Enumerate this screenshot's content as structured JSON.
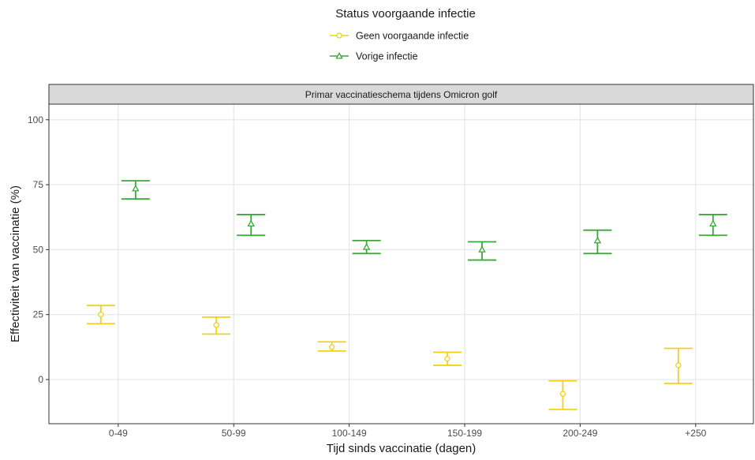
{
  "chart_data": {
    "type": "errorbar",
    "legend": {
      "title": "Status voorgaande infectie",
      "position": "top"
    },
    "facet_title": "Primar vaccinatieschema tijdens Omicron golf",
    "xlabel": "Tijd sinds vaccinatie (dagen)",
    "ylabel": "Effectiviteit van vaccinatie (%)",
    "categories": [
      "0-49",
      "50-99",
      "100-149",
      "150-199",
      "200-249",
      "+250"
    ],
    "ylim": [
      -17,
      106
    ],
    "yticks": [
      0,
      25,
      50,
      75,
      100
    ],
    "grid": true,
    "series": [
      {
        "name": "Geen voorgaande infectie",
        "color": "#f2d11d",
        "marker": "circle",
        "points": [
          {
            "category": "0-49",
            "value": 25,
            "lower": 21.5,
            "upper": 28.5
          },
          {
            "category": "50-99",
            "value": 21,
            "lower": 17.5,
            "upper": 24
          },
          {
            "category": "100-149",
            "value": 12.5,
            "lower": 11,
            "upper": 14.5
          },
          {
            "category": "150-199",
            "value": 8,
            "lower": 5.5,
            "upper": 10.5
          },
          {
            "category": "200-249",
            "value": -5.5,
            "lower": -11.5,
            "upper": -0.5
          },
          {
            "category": "+250",
            "value": 5.5,
            "lower": -1.5,
            "upper": 12
          }
        ]
      },
      {
        "name": "Vorige infectie",
        "color": "#3aa935",
        "marker": "triangle",
        "points": [
          {
            "category": "0-49",
            "value": 73.5,
            "lower": 69.5,
            "upper": 76.5
          },
          {
            "category": "50-99",
            "value": 60,
            "lower": 55.5,
            "upper": 63.5
          },
          {
            "category": "100-149",
            "value": 51,
            "lower": 48.5,
            "upper": 53.5
          },
          {
            "category": "150-199",
            "value": 50,
            "lower": 46,
            "upper": 53
          },
          {
            "category": "200-249",
            "value": 53.5,
            "lower": 48.5,
            "upper": 57.5
          },
          {
            "category": "+250",
            "value": 60,
            "lower": 55.5,
            "upper": 63.5
          }
        ]
      }
    ]
  }
}
